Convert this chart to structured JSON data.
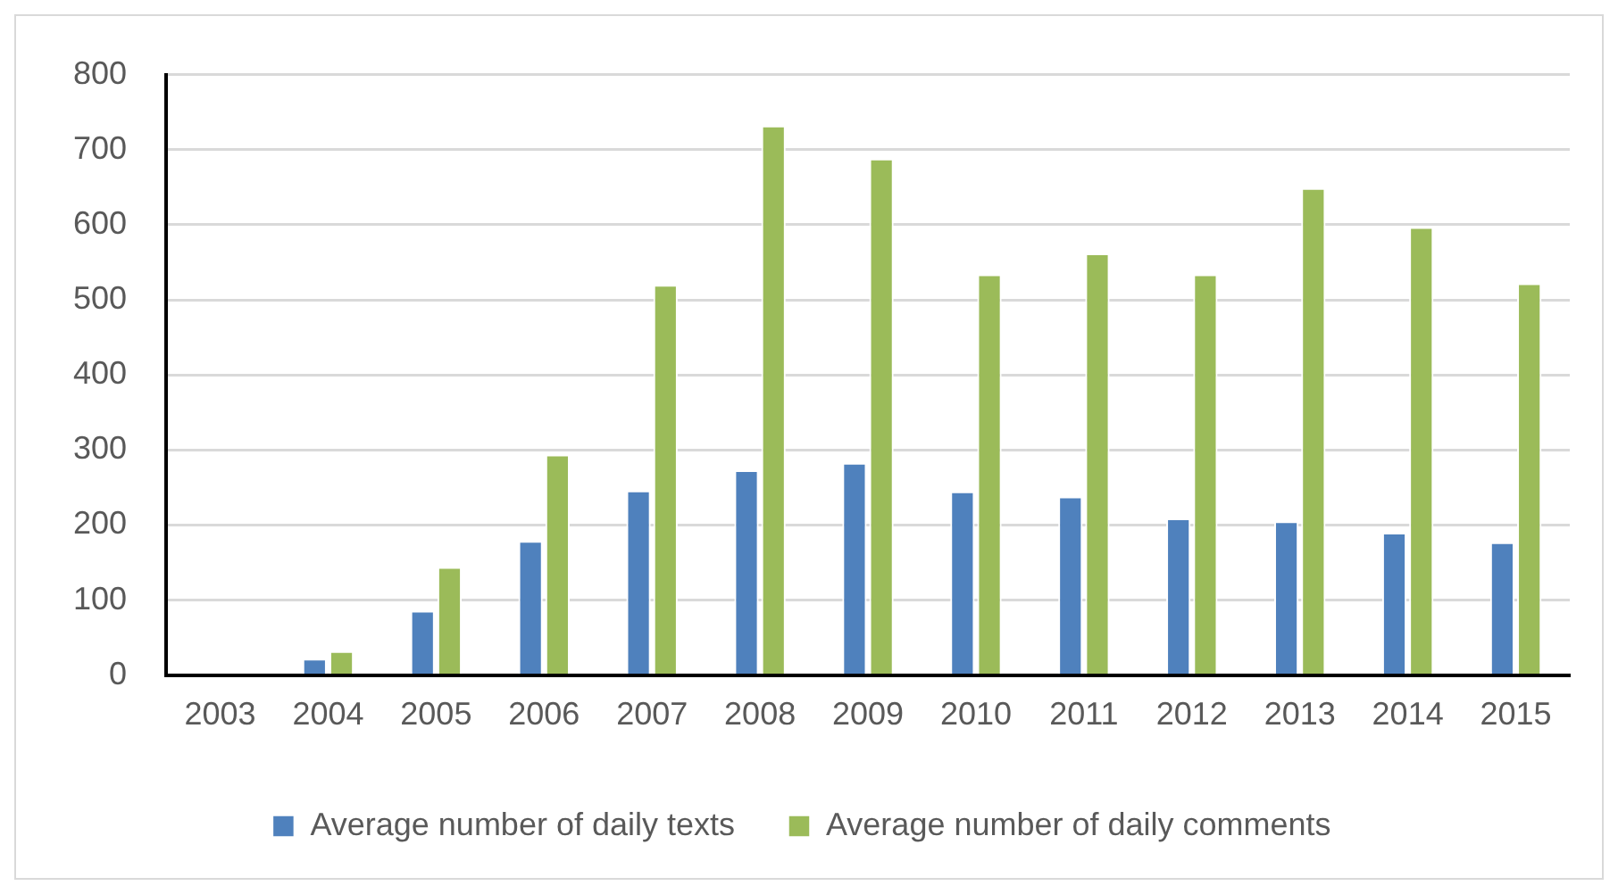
{
  "chart_data": {
    "type": "bar",
    "categories": [
      "2003",
      "2004",
      "2005",
      "2006",
      "2007",
      "2008",
      "2009",
      "2010",
      "2011",
      "2012",
      "2013",
      "2014",
      "2015"
    ],
    "series": [
      {
        "name": "Average number of daily texts",
        "color": "#4f81bd",
        "values": [
          0,
          22,
          86,
          179,
          246,
          273,
          283,
          245,
          238,
          209,
          205,
          190,
          177
        ]
      },
      {
        "name": "Average number of daily comments",
        "color": "#9bbb59",
        "values": [
          0,
          32,
          144,
          294,
          520,
          732,
          688,
          534,
          562,
          534,
          649,
          597,
          522
        ]
      }
    ],
    "ylim": [
      0,
      800
    ],
    "yticks": [
      0,
      100,
      200,
      300,
      400,
      500,
      600,
      700,
      800
    ],
    "grid": "y",
    "legend": "bottom"
  }
}
